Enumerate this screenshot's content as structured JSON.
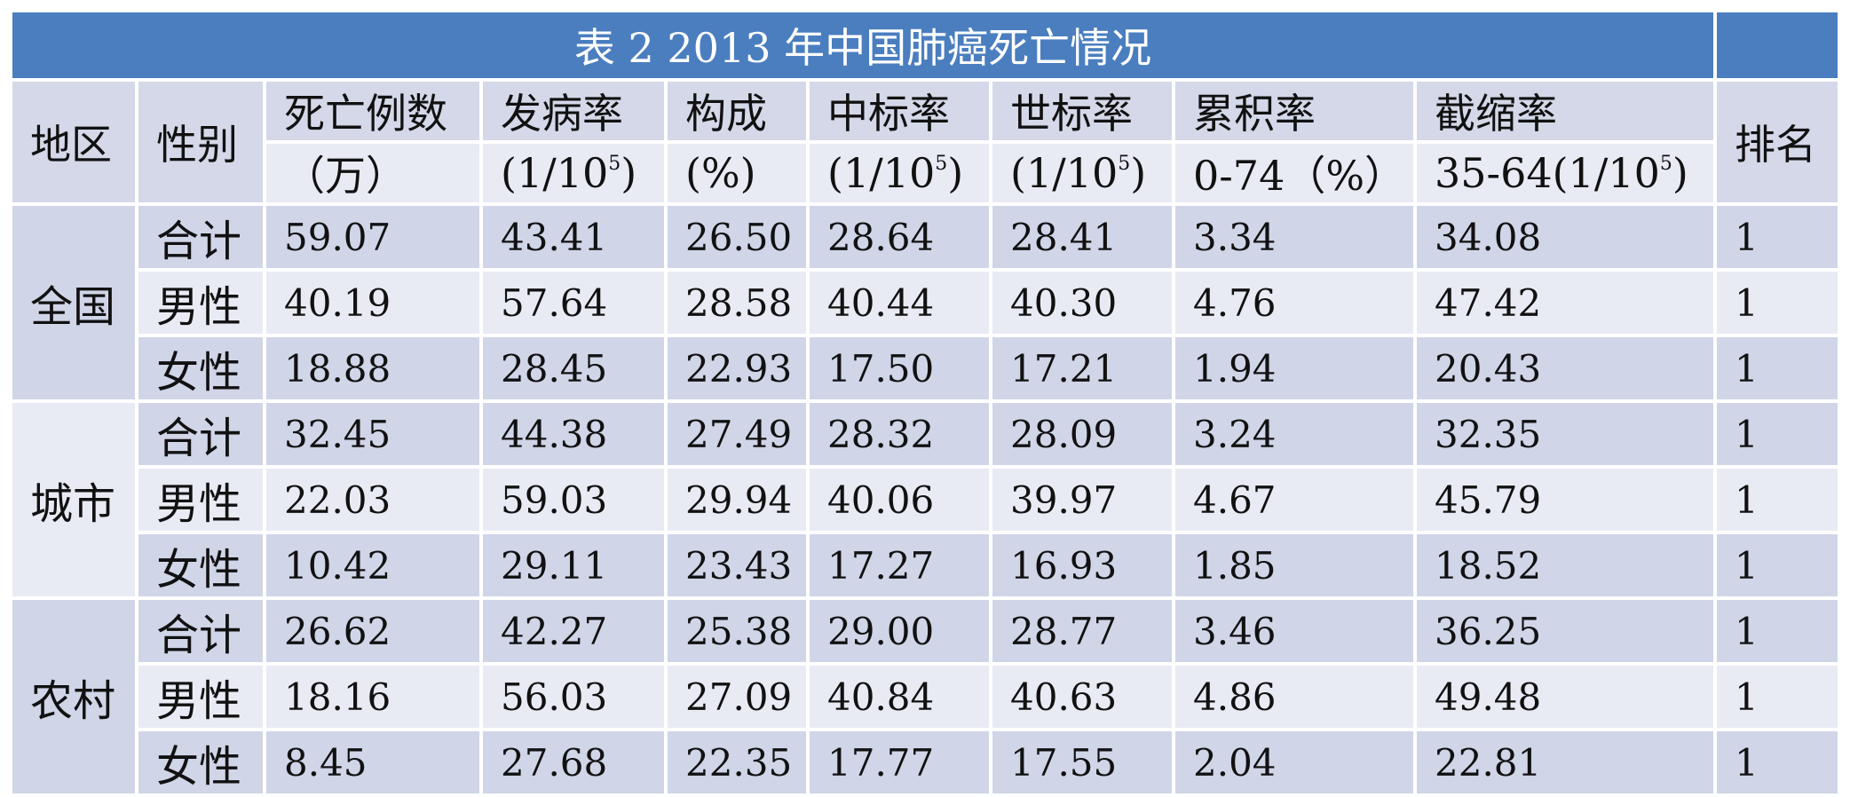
{
  "title": "表 2  2013 年中国肺癌死亡情况",
  "headers": {
    "region": "地区",
    "sex": "性别",
    "rank": "排名",
    "cols": [
      {
        "top": "死亡例数",
        "bottom": "（万）",
        "sup": ""
      },
      {
        "top": "发病率",
        "bottom": "(1/10",
        "sup": "5",
        "close": ")"
      },
      {
        "top": "构成",
        "bottom": "(%)",
        "sup": ""
      },
      {
        "top": "中标率",
        "bottom": "(1/10",
        "sup": "5",
        "close": ")"
      },
      {
        "top": "世标率",
        "bottom": "(1/10",
        "sup": "5",
        "close": ")"
      },
      {
        "top": "累积率",
        "bottom": "0-74（%）",
        "sup": ""
      },
      {
        "top": "截缩率",
        "bottom": "35-64(1/10",
        "sup": "5",
        "close": ")"
      }
    ]
  },
  "regions": [
    {
      "name": "全国",
      "rows": [
        {
          "sex": "合计",
          "values": [
            "59.07",
            "43.41",
            "26.50",
            "28.64",
            "28.41",
            "3.34",
            "34.08"
          ],
          "rank": "1"
        },
        {
          "sex": "男性",
          "values": [
            "40.19",
            "57.64",
            "28.58",
            "40.44",
            "40.30",
            "4.76",
            "47.42"
          ],
          "rank": "1"
        },
        {
          "sex": "女性",
          "values": [
            "18.88",
            "28.45",
            "22.93",
            "17.50",
            "17.21",
            "1.94",
            "20.43"
          ],
          "rank": "1"
        }
      ]
    },
    {
      "name": "城市",
      "rows": [
        {
          "sex": "合计",
          "values": [
            "32.45",
            "44.38",
            "27.49",
            "28.32",
            "28.09",
            "3.24",
            "32.35"
          ],
          "rank": "1"
        },
        {
          "sex": "男性",
          "values": [
            "22.03",
            "59.03",
            "29.94",
            "40.06",
            "39.97",
            "4.67",
            "45.79"
          ],
          "rank": "1"
        },
        {
          "sex": "女性",
          "values": [
            "10.42",
            "29.11",
            "23.43",
            "17.27",
            "16.93",
            "1.85",
            "18.52"
          ],
          "rank": "1"
        }
      ]
    },
    {
      "name": "农村",
      "rows": [
        {
          "sex": "合计",
          "values": [
            "26.62",
            "42.27",
            "25.38",
            "29.00",
            "28.77",
            "3.46",
            "36.25"
          ],
          "rank": "1"
        },
        {
          "sex": "男性",
          "values": [
            "18.16",
            "56.03",
            "27.09",
            "40.84",
            "40.63",
            "4.86",
            "49.48"
          ],
          "rank": "1"
        },
        {
          "sex": "女性",
          "values": [
            "8.45",
            "27.68",
            "22.35",
            "17.77",
            "17.55",
            "2.04",
            "22.81"
          ],
          "rank": "1"
        }
      ]
    }
  ]
}
